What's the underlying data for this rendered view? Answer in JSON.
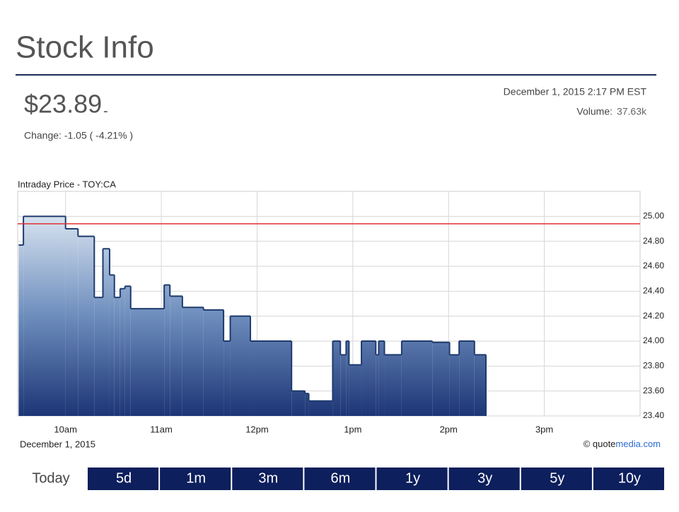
{
  "header": {
    "title": "Stock Info",
    "price": "$23.89",
    "price_direction": "-",
    "change": "Change: -1.05 ( -4.21% )",
    "timestamp": "December 1, 2015 2:17 PM EST",
    "volume_label": "Volume:",
    "volume": "37.63k"
  },
  "chart_data": {
    "type": "line",
    "line_shape": "step",
    "title": "Intraday Price - TOY:CA",
    "x_caption": "December 1, 2015",
    "x": [
      9.51,
      9.56,
      10.0,
      10.13,
      10.3,
      10.39,
      10.46,
      10.51,
      10.57,
      10.62,
      10.68,
      11.03,
      11.09,
      11.22,
      11.44,
      11.65,
      11.72,
      11.93,
      12.36,
      12.5,
      12.54,
      12.79,
      12.87,
      12.93,
      12.96,
      13.09,
      13.24,
      13.27,
      13.33,
      13.51,
      13.83,
      14.01,
      14.11,
      14.27,
      14.39
    ],
    "series": [
      {
        "name": "TOY:CA",
        "color": "#1f3a6e",
        "values": [
          24.77,
          25.0,
          24.9,
          24.84,
          24.35,
          24.74,
          24.53,
          24.35,
          24.42,
          24.44,
          24.26,
          24.45,
          24.36,
          24.27,
          24.25,
          24.0,
          24.2,
          24.0,
          23.6,
          23.58,
          23.52,
          24.0,
          23.89,
          24.0,
          23.81,
          24.0,
          23.89,
          24.0,
          23.89,
          24.0,
          23.99,
          23.89,
          24.0,
          23.89,
          23.89
        ]
      }
    ],
    "reference_line": {
      "value": 24.94,
      "color": "#e03030"
    },
    "xlim": [
      9.5,
      16
    ],
    "xticks": [
      {
        "value": 10,
        "label": "10am"
      },
      {
        "value": 11,
        "label": "11am"
      },
      {
        "value": 12,
        "label": "12pm"
      },
      {
        "value": 13,
        "label": "1pm"
      },
      {
        "value": 14,
        "label": "2pm"
      },
      {
        "value": 15,
        "label": "3pm"
      }
    ],
    "ylim": [
      23.4,
      25.2
    ],
    "yticks": [
      {
        "value": 23.4,
        "label": "23.40"
      },
      {
        "value": 23.6,
        "label": "23.60"
      },
      {
        "value": 23.8,
        "label": "23.80"
      },
      {
        "value": 24.0,
        "label": "24.00"
      },
      {
        "value": 24.2,
        "label": "24.20"
      },
      {
        "value": 24.4,
        "label": "24.40"
      },
      {
        "value": 24.6,
        "label": "24.60"
      },
      {
        "value": 24.8,
        "label": "24.80"
      },
      {
        "value": 25.0,
        "label": "25.00"
      }
    ],
    "grid": true,
    "credit_prefix": "© quote",
    "credit_suffix": "media.com"
  },
  "buttons": [
    "Today",
    "5d",
    "1m",
    "3m",
    "6m",
    "1y",
    "3y",
    "5y",
    "10y"
  ]
}
